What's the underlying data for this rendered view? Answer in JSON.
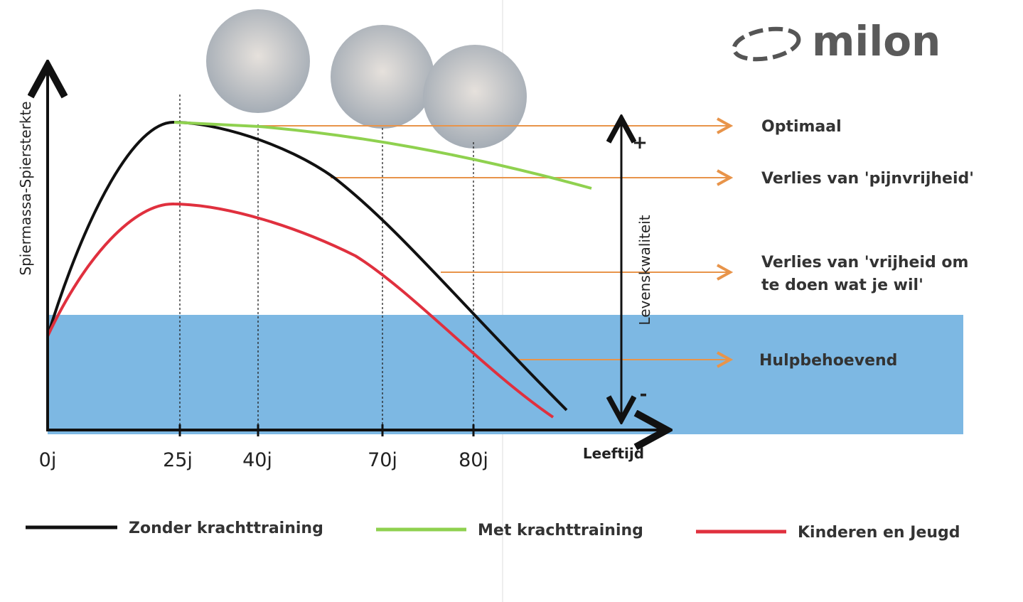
{
  "brand": "milon",
  "y_axis_label": "Spiermassa-Spiersterkte",
  "x_axis_label": "Leeftijd",
  "x_ticks": [
    "0j",
    "25j",
    "40j",
    "70j",
    "80j"
  ],
  "quality_axis": {
    "label": "Levenskwaliteit",
    "top": "+",
    "bottom": "-"
  },
  "levels": [
    "Optimaal",
    "Verlies van 'pijnvrijheid'",
    "Verlies van 'vrijheid om",
    "te doen wat je wil'",
    "Hulpbehoevend"
  ],
  "legend": [
    "Zonder krachttraining",
    "Met krachttraining",
    "Kinderen en Jeugd"
  ]
}
